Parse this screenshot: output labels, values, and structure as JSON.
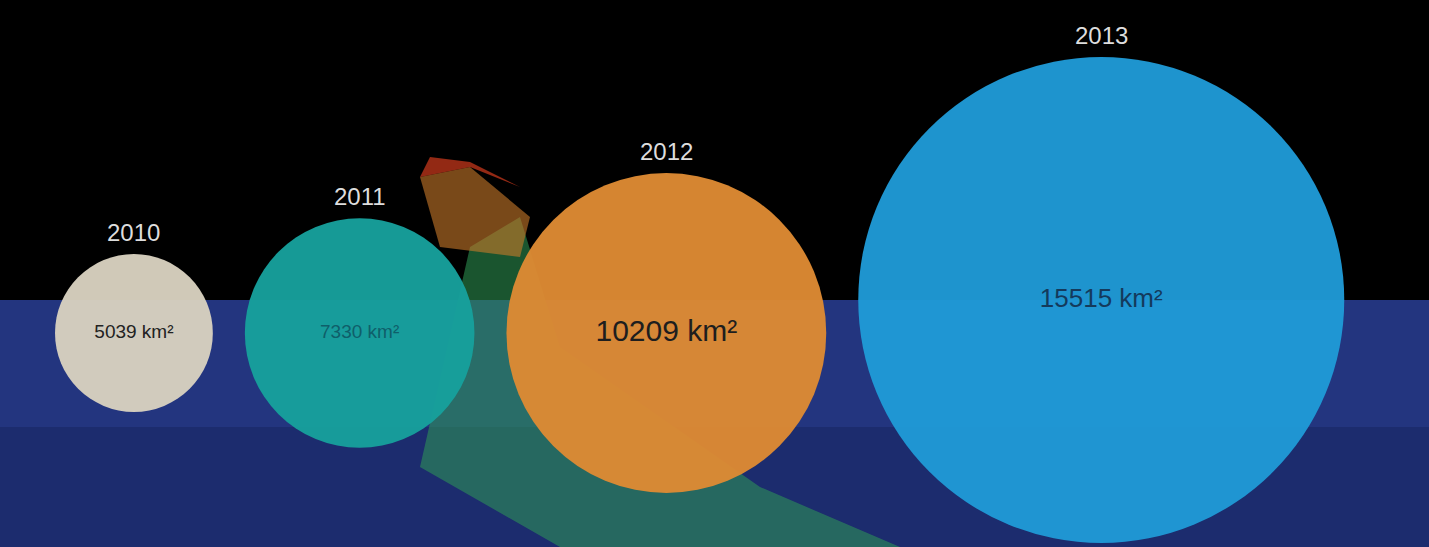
{
  "chart_data": {
    "type": "bubble",
    "categories": [
      "2010",
      "2011",
      "2012",
      "2013"
    ],
    "values": [
      5039,
      7330,
      10209,
      15515
    ],
    "value_labels": [
      "5039 km²",
      "7330 km²",
      "10209 km²",
      "15515 km²"
    ],
    "colors": [
      "#d8d1c0",
      "#17a09c",
      "#de8a33",
      "#1f9ad6"
    ],
    "data_labels": true,
    "tick_labels": false,
    "grid": false
  }
}
